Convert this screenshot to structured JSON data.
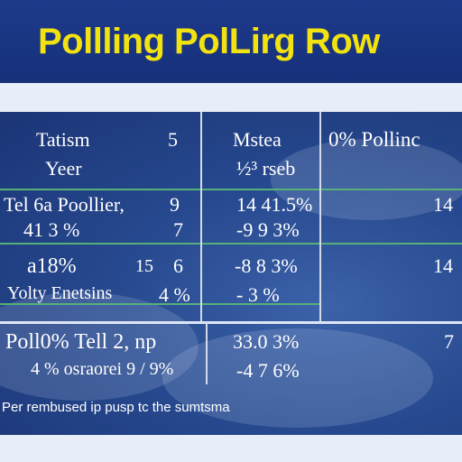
{
  "title": "Pollling PolLirg Row",
  "header": {
    "col1_line1": "Tatism",
    "col1_line2": "Yeer",
    "col2": "5",
    "col3_line1": "Mstea",
    "col3_line2": "½³ rseb",
    "col4": "0% Pollinc"
  },
  "rows": [
    {
      "col1_line1": "Tel 6a Poollier,",
      "col1_line2": "41 3 %",
      "col2_line1": "9",
      "col2_line2": "7",
      "col3_line1": "14 41.5%",
      "col3_line2": "-9 9 3%",
      "col4": "14"
    },
    {
      "col1_line1": "a18%",
      "col1_extra": "15",
      "col1_line2": "Yolty Enetsins",
      "col2_line1": "6",
      "col2_line2": "4 %",
      "col3_line1": "-8 8 3%",
      "col3_line2": "- 3 %",
      "col4": "14"
    },
    {
      "col1_line1": "Poll0% Tell 2, np",
      "col1_line2": "4 % osraorei 9 / 9%",
      "col3_line1": "33.0 3%",
      "col3_line2": "-4 7 6%",
      "col4": "7"
    }
  ],
  "footnote": "Per rembused ip pusp tc the sumtsma"
}
